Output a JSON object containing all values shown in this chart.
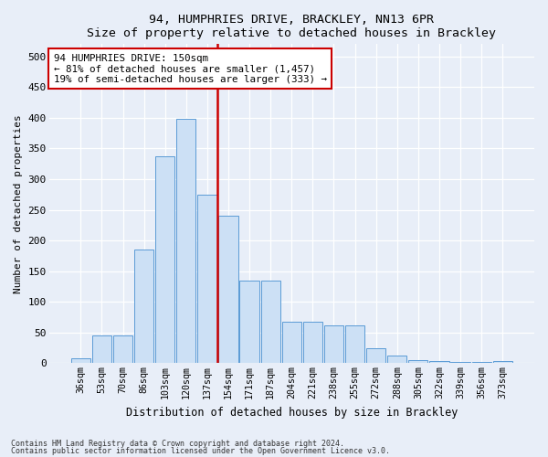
{
  "title": "94, HUMPHRIES DRIVE, BRACKLEY, NN13 6PR",
  "subtitle": "Size of property relative to detached houses in Brackley",
  "xlabel": "Distribution of detached houses by size in Brackley",
  "ylabel": "Number of detached properties",
  "categories": [
    "36sqm",
    "53sqm",
    "70sqm",
    "86sqm",
    "103sqm",
    "120sqm",
    "137sqm",
    "154sqm",
    "171sqm",
    "187sqm",
    "204sqm",
    "221sqm",
    "238sqm",
    "255sqm",
    "272sqm",
    "288sqm",
    "305sqm",
    "322sqm",
    "339sqm",
    "356sqm",
    "373sqm"
  ],
  "values": [
    8,
    46,
    46,
    185,
    338,
    398,
    275,
    240,
    135,
    135,
    68,
    67,
    62,
    62,
    25,
    13,
    5,
    3,
    2,
    2,
    3
  ],
  "bar_color": "#cce0f5",
  "bar_edge_color": "#5b9bd5",
  "marker_idx": 7,
  "annotation_title": "94 HUMPHRIES DRIVE: 150sqm",
  "annotation_line1": "← 81% of detached houses are smaller (1,457)",
  "annotation_line2": "19% of semi-detached houses are larger (333) →",
  "marker_color": "#cc0000",
  "background_color": "#e8eef8",
  "footer1": "Contains HM Land Registry data © Crown copyright and database right 2024.",
  "footer2": "Contains public sector information licensed under the Open Government Licence v3.0.",
  "ylim": [
    0,
    520
  ],
  "yticks": [
    0,
    50,
    100,
    150,
    200,
    250,
    300,
    350,
    400,
    450,
    500
  ]
}
